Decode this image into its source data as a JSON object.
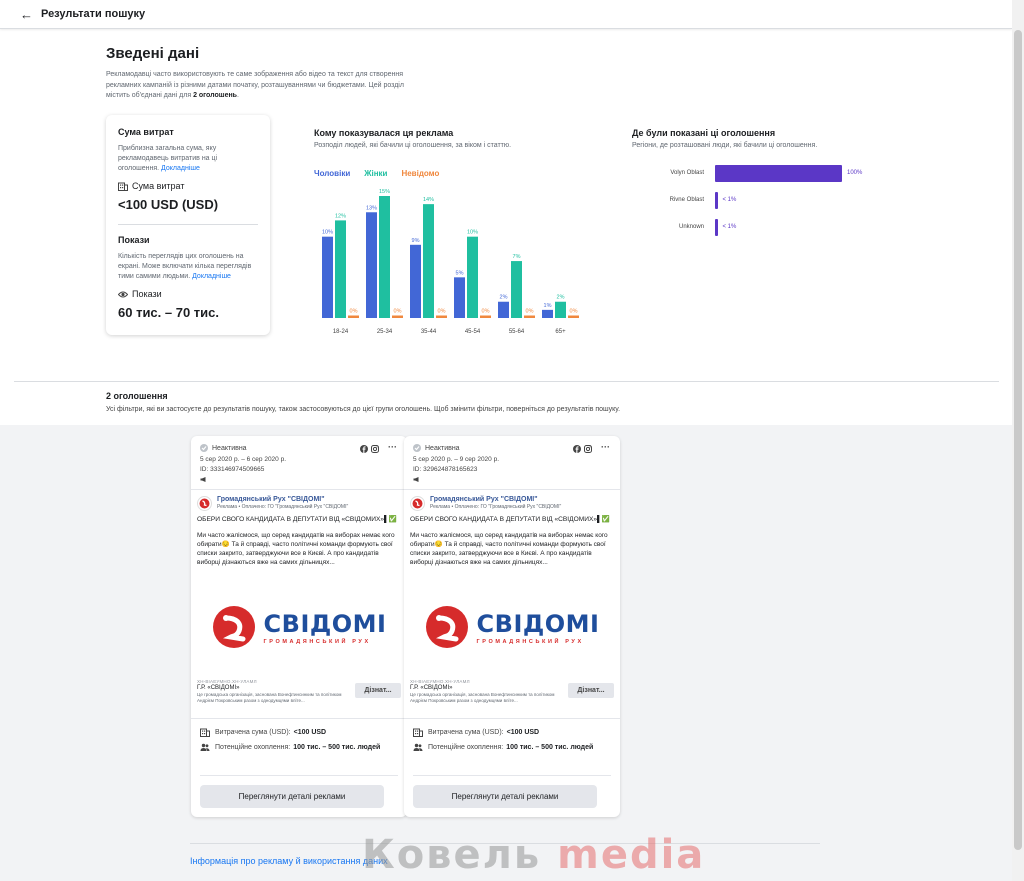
{
  "topbar": {
    "back_icon": "←",
    "title": "Результати пошуку"
  },
  "summary": {
    "title": "Зведені дані",
    "desc_pre": "Рекламодавці часто використовують те саме зображення або відео та текст для створення рекламних кампаній із різними датами початку, розташуваннями чи бюджетами. Цей розділ містить об'єднані дані для ",
    "desc_bold": "2 оголошень",
    "desc_post": "."
  },
  "spend": {
    "heading": "Сума витрат",
    "desc": "Приблизна загальна сума, яку рекламодавець витратив на ці оголошення.",
    "link": "Докладніше",
    "label": "Сума витрат",
    "value": "<100 USD (USD)"
  },
  "impressions": {
    "heading": "Покази",
    "desc": "Кількість переглядів цих оголошень на екрані. Може включати кілька переглядів тими самими людьми.",
    "link": "Докладніше",
    "label": "Покази",
    "value": "60 тис. – 70 тис."
  },
  "demographics": {
    "heading": "Кому показувалася ця реклама",
    "sub": "Розподіл людей, які бачили ці оголошення, за віком і статтю.",
    "legend": {
      "men": "Чоловіки",
      "women": "Жінки",
      "unknown": "Невідомо"
    }
  },
  "chart_data": [
    {
      "type": "bar",
      "categories": [
        "18-24",
        "25-34",
        "35-44",
        "45-54",
        "55-64",
        "65+"
      ],
      "series": [
        {
          "name": "Чоловіки",
          "values": [
            10,
            13,
            9,
            5,
            2,
            1
          ],
          "labels": [
            "10%",
            "13%",
            "9%",
            "5%",
            "2%",
            "1%"
          ]
        },
        {
          "name": "Жінки",
          "values": [
            12,
            15,
            14,
            10,
            7,
            2
          ],
          "labels": [
            "12%",
            "15%",
            "14%",
            "10%",
            "7%",
            "2%"
          ]
        },
        {
          "name": "Невідомо",
          "values": [
            0,
            0,
            0,
            0,
            0,
            0
          ],
          "labels": [
            "0%",
            "0%",
            "0%",
            "0%",
            "0%",
            "0%"
          ]
        }
      ],
      "colors": {
        "men": "#4267d6",
        "women": "#1fbfa0",
        "unknown": "#f0883e"
      },
      "ylim": [
        0,
        15
      ]
    },
    {
      "type": "bar",
      "categories": [
        "Volyn Oblast",
        "Rivne Oblast",
        "Unknown"
      ],
      "values": [
        100,
        0.5,
        0.5
      ],
      "labels": [
        "100%",
        "< 1%",
        "< 1%"
      ],
      "color": "#5b37c6"
    }
  ],
  "regions": {
    "heading": "Де були показані ці оголошення",
    "sub": "Регіони, де розташовані люди, які бачили ці оголошення."
  },
  "ads_section": {
    "title": "2 оголошення",
    "desc": "Усі фільтри, які ви застосуєте до результатів пошуку, також застосовуються до цієї групи оголошень. Щоб змінити фільтри, поверніться до результатів пошуку."
  },
  "ads": [
    {
      "status": "Неактивна",
      "dates": "5 сер 2020 р. – 6 сер 2020 р.",
      "id": "ID: 333146974509665",
      "page_name": "Громадянський Рух \"СВІДОМІ\"",
      "page_sub": "Реклама • Оплачено: ГО \"Громадянський Рух \"СВІДОМІ\"",
      "text1": "ОБЕРИ СВОГО КАНДИДАТА В ДЕПУТАТИ ВІД «СВІДОМИХ»▌✅",
      "text2": "Ми часто жалісмося, що серед кандидатів на виборах немає кого обирати😔 Та й справді, часто політичні команди формують свої списки закрито, затверджуючи все в Києві. А про кандидатів виборці дізнаються вже на самих дільницях...",
      "brand_word": "СВІДОМІ",
      "brand_sub": "ГРОМАДЯНСЬКИЙ РУХ",
      "url": "ХН-ВІАЕУМНО.ХН-УЛАМЛ",
      "cta_name": "Г.Р. «СВІДОМІ»",
      "cta_desc": "Це громадська організація, заснована Вонефтинсинким та політиком Андрієм Покровським разом з однодумцями вліте...",
      "cta_button": "Дізнат...",
      "spend_label": "Витрачена сума (USD):",
      "spend_value": "<100 USD",
      "reach_label": "Потенційне охоплення:",
      "reach_value": "100 тис. – 500 тис. людей",
      "details_button": "Переглянути деталі реклами"
    },
    {
      "status": "Неактивна",
      "dates": "5 сер 2020 р. – 9 сер 2020 р.",
      "id": "ID: 329624878165623",
      "page_name": "Громадянський Рух \"СВІДОМІ\"",
      "page_sub": "Реклама • Оплачено: ГО \"Громадянський Рух \"СВІДОМІ\"",
      "text1": "ОБЕРИ СВОГО КАНДИДАТА В ДЕПУТАТИ ВІД «СВІДОМИХ»▌✅",
      "text2": "Ми часто жалісмося, що серед кандидатів на виборах немає кого обирати😔 Та й справді, часто політичні команди формують свої списки закрито, затверджуючи все в Києві. А про кандидатів виборці дізнаються вже на самих дільницях...",
      "brand_word": "СВІДОМІ",
      "brand_sub": "ГРОМАДЯНСЬКИЙ РУХ",
      "url": "ХН-ВІАЕУМНО.ХН-УЛАМЛ",
      "cta_name": "Г.Р. «СВІДОМІ»",
      "cta_desc": "Це громадська організація, заснована Вонефтинсинким та політиком Андрієм Покровським разом з однодумцями вліте...",
      "cta_button": "Дізнат...",
      "spend_label": "Витрачена сума (USD):",
      "spend_value": "<100 USD",
      "reach_label": "Потенційне охоплення:",
      "reach_value": "100 тис. – 500 тис. людей",
      "details_button": "Переглянути деталі реклами"
    }
  ],
  "footer": {
    "link": "Інформація про рекламу й використання даних"
  },
  "watermark": {
    "part1": "Ковель ",
    "part2": "media"
  }
}
